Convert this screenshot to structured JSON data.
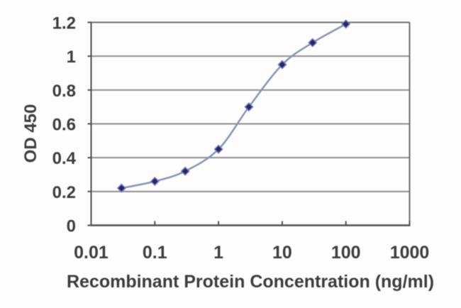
{
  "chart_data": {
    "type": "line",
    "title": "",
    "xlabel": "Recombinant Protein Concentration (ng/ml)",
    "ylabel": "OD 450",
    "x_scale": "log",
    "xlim": [
      0.01,
      1000
    ],
    "ylim": [
      0,
      1.2
    ],
    "x_ticks": [
      0.01,
      0.1,
      1,
      10,
      100,
      1000
    ],
    "x_tick_labels": [
      "0.01",
      "0.1",
      "1",
      "10",
      "100",
      "1000"
    ],
    "y_ticks": [
      0,
      0.2,
      0.4,
      0.6,
      0.8,
      1,
      1.2
    ],
    "y_tick_labels": [
      "0",
      "0.2",
      "0.4",
      "0.6",
      "0.8",
      "1",
      "1.2"
    ],
    "grid": "horizontal",
    "legend": "none",
    "marker": "diamond",
    "x": [
      0.03,
      0.1,
      0.3,
      1,
      3,
      10,
      30,
      100
    ],
    "y": [
      0.22,
      0.26,
      0.32,
      0.45,
      0.7,
      0.95,
      1.08,
      1.19
    ],
    "colors": {
      "line": "#8794b5",
      "marker": "#26266b",
      "marker_halo": "#7b7bbd",
      "grid": "#8e8e8e",
      "axis": "#4f4f4f",
      "frame": "#6f6f6f",
      "text": "#3c3c3c",
      "background": "#fdfdfd"
    }
  }
}
